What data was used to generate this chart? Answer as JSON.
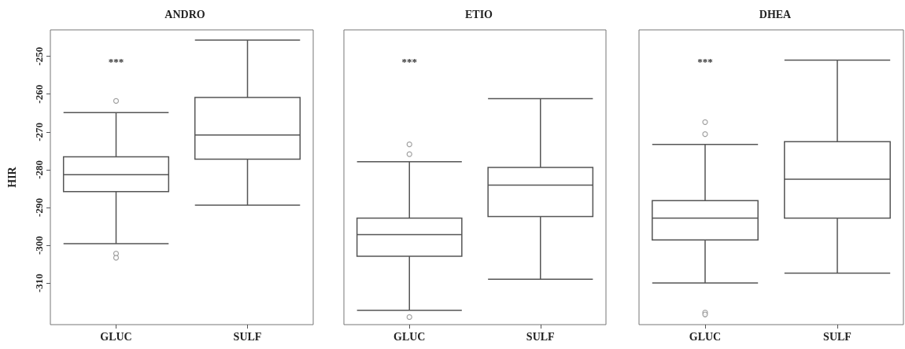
{
  "chart_data": [
    {
      "type": "box",
      "title": "ANDRO",
      "ylabel": "HIR",
      "categories": [
        "GLUC",
        "SULF"
      ],
      "ylim": [
        -321,
        -243
      ],
      "yticks": [
        -250,
        -260,
        -270,
        -280,
        -290,
        -300,
        -310
      ],
      "grid": false,
      "color": "#555555",
      "boxes": [
        {
          "low": -299.6,
          "q1": -285.8,
          "median": -281.3,
          "q3": -276.6,
          "high": -264.9,
          "outliers": [
            -261.8,
            -302.2,
            -303.3
          ]
        },
        {
          "low": -289.4,
          "q1": -277.2,
          "median": -270.8,
          "q3": -260.9,
          "high": -245.7
        }
      ],
      "annotations": [
        "***"
      ]
    },
    {
      "type": "box",
      "title": "ETIO",
      "categories": [
        "GLUC",
        "SULF"
      ],
      "ylim": [
        -321,
        -243
      ],
      "tick_labels": "x",
      "grid": false,
      "color": "#555555",
      "boxes": [
        {
          "low": -317.2,
          "q1": -302.9,
          "median": -297.2,
          "q3": -292.8,
          "high": -277.9,
          "outliers": [
            -273.3,
            -275.9,
            -319.0
          ]
        },
        {
          "low": -309.0,
          "q1": -292.4,
          "median": -284.1,
          "q3": -279.4,
          "high": -261.2
        }
      ],
      "annotations": [
        "***"
      ]
    },
    {
      "type": "box",
      "title": "DHEA",
      "categories": [
        "GLUC",
        "SULF"
      ],
      "ylim": [
        -321,
        -243
      ],
      "tick_labels": "x",
      "grid": false,
      "color": "#555555",
      "boxes": [
        {
          "low": -310.0,
          "q1": -298.6,
          "median": -292.8,
          "q3": -288.2,
          "high": -273.3,
          "outliers": [
            -267.4,
            -270.6,
            -317.8,
            -318.3
          ]
        },
        {
          "low": -307.4,
          "q1": -292.8,
          "median": -282.5,
          "q3": -272.6,
          "high": -251.0
        }
      ],
      "annotations": [
        "***"
      ]
    }
  ]
}
